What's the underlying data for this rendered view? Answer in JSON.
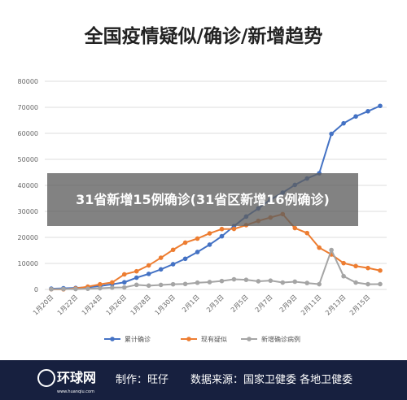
{
  "chart_data": {
    "type": "line",
    "title": "全国疫情疑似/确诊/新增趋势",
    "categories": [
      "1月20日",
      null,
      "1月22日",
      null,
      "1月24日",
      null,
      "1月26日",
      null,
      "1月28日",
      null,
      "1月30日",
      null,
      "2月1日",
      null,
      "2月3日",
      null,
      "2月5日",
      null,
      "2月7日",
      null,
      "2月9日",
      null,
      "2月11日",
      null,
      "2月13日",
      null,
      "2月15日",
      null
    ],
    "series": [
      {
        "name": "累计确诊",
        "color": "#4472c4",
        "values": [
          291,
          440,
          571,
          830,
          1287,
          1975,
          2744,
          4515,
          5974,
          7711,
          9692,
          11791,
          14380,
          17205,
          20438,
          24324,
          28018,
          31161,
          34546,
          37198,
          40171,
          42638,
          44653,
          59804,
          63851,
          66492,
          68500,
          70548
        ]
      },
      {
        "name": "现有疑似",
        "color": "#ed7d31",
        "values": [
          54,
          37,
          393,
          1072,
          1965,
          2684,
          5794,
          6973,
          9239,
          12167,
          15238,
          17988,
          19544,
          21558,
          23214,
          23260,
          24702,
          26359,
          27657,
          28942,
          23589,
          21675,
          16067,
          13435,
          10109,
          8969,
          8228,
          7264
        ]
      },
      {
        "name": "新增确诊病例",
        "color": "#a5a5a5",
        "values": [
          77,
          149,
          131,
          259,
          444,
          688,
          769,
          1771,
          1459,
          1737,
          1981,
          2099,
          2589,
          2825,
          3235,
          3887,
          3694,
          3143,
          3385,
          2652,
          2973,
          2467,
          2015,
          15152,
          5090,
          2641,
          2009,
          2048
        ]
      }
    ],
    "ylim": [
      0,
      80000
    ],
    "yticks": [
      0,
      10000,
      20000,
      30000,
      40000,
      50000,
      60000,
      70000,
      80000
    ],
    "grid": true,
    "legend": "bottom"
  },
  "caption": "31省新增15例确诊(31省区新增16例确诊)",
  "footer": {
    "logo": "环球网",
    "logo_url": "www.huanqiu.com",
    "author": "制作：旺仔",
    "source": "数据来源：国家卫健委 各地卫健委"
  }
}
